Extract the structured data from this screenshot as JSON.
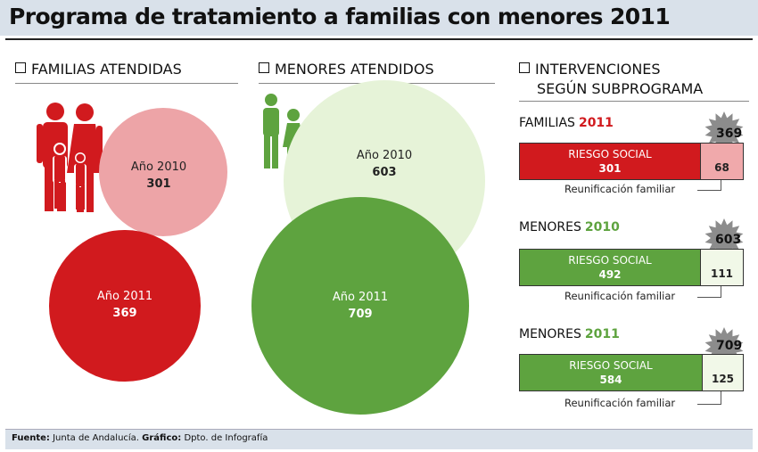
{
  "title": "Programa de tratamiento a familias con menores 2011",
  "sections": {
    "familias": "FAMILIAS ATENDIDAS",
    "menores": "MENORES ATENDIDOS",
    "intervenciones_line1": "INTERVENCIONES",
    "intervenciones_line2": "SEGÚN SUBPROGRAMA"
  },
  "colors": {
    "red": "#d11a1e",
    "light_red": "#eda4a7",
    "green": "#5ea33f",
    "light_green": "#e6f3d8",
    "light_green_cell": "#f1f8e8",
    "light_red_cell": "#f0a9ab",
    "header_bg": "#d9e1ea",
    "star_gray": "#8c8c8c"
  },
  "icons": [
    "family-group-icon",
    "children-pair-icon"
  ],
  "chart_data": [
    {
      "type": "bubble",
      "title": "FAMILIAS ATENDIDAS",
      "categories": [
        "Año 2010",
        "Año 2011"
      ],
      "values": [
        301,
        369
      ],
      "labels": {
        "a2010": {
          "year": "Año 2010",
          "value": "301"
        },
        "a2011": {
          "year": "Año 2011",
          "value": "369"
        }
      },
      "colors": [
        "#eda4a7",
        "#d11a1e"
      ]
    },
    {
      "type": "bubble",
      "title": "MENORES ATENDIDOS",
      "categories": [
        "Año 2010",
        "Año 2011"
      ],
      "values": [
        603,
        709
      ],
      "labels": {
        "a2010": {
          "year": "Año 2010",
          "value": "603"
        },
        "a2011": {
          "year": "Año 2011",
          "value": "709"
        }
      },
      "colors": [
        "#e6f3d8",
        "#5ea33f"
      ]
    },
    {
      "type": "bar",
      "title": "INTERVENCIONES SEGÚN SUBPROGRAMA",
      "groups": [
        {
          "label": "FAMILIAS",
          "year": "2011",
          "total": 369,
          "total_label": "369",
          "riesgo_label": "RIESGO SOCIAL",
          "riesgo": 301,
          "riesgo_text": "301",
          "reunificacion_label": "Reunificación familiar",
          "reunificacion": 68,
          "reunificacion_text": "68",
          "colors": [
            "#d11a1e",
            "#f0a9ab"
          ]
        },
        {
          "label": "MENORES",
          "year": "2010",
          "total": 603,
          "total_label": "603",
          "riesgo_label": "RIESGO SOCIAL",
          "riesgo": 492,
          "riesgo_text": "492",
          "reunificacion_label": "Reunificación familiar",
          "reunificacion": 111,
          "reunificacion_text": "111",
          "colors": [
            "#5ea33f",
            "#f1f8e8"
          ]
        },
        {
          "label": "MENORES",
          "year": "2011",
          "total": 709,
          "total_label": "709",
          "riesgo_label": "RIESGO SOCIAL",
          "riesgo": 584,
          "riesgo_text": "584",
          "reunificacion_label": "Reunificación familiar",
          "reunificacion": 125,
          "reunificacion_text": "125",
          "colors": [
            "#5ea33f",
            "#f1f8e8"
          ]
        }
      ]
    }
  ],
  "footer": {
    "fuente_label": "Fuente:",
    "fuente": " Junta de Andalucía. ",
    "grafico_label": "Gráfico:",
    "grafico": " Dpto. de Infografía"
  }
}
